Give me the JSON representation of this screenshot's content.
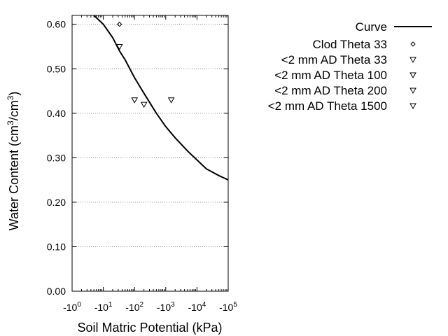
{
  "chart_data": {
    "type": "scatter",
    "xlabel": "Soil Matric Potential (kPa)",
    "ylabel_main": "Water Content (cm",
    "ylabel_sup1": "3",
    "ylabel_mid": "/cm",
    "ylabel_sup2": "3",
    "ylabel_end": ")",
    "x_scale": "log (negative potentials)",
    "xlim": [
      -1,
      -100000
    ],
    "ylim": [
      0.0,
      0.62
    ],
    "grid": "horizontal dotted",
    "legend_placement": "top-right outside plot",
    "x_ticks": [
      {
        "value": -1,
        "base": "-10",
        "exp": "0"
      },
      {
        "value": -10,
        "base": "-10",
        "exp": "1"
      },
      {
        "value": -100,
        "base": "-10",
        "exp": "2"
      },
      {
        "value": -1000,
        "base": "-10",
        "exp": "3"
      },
      {
        "value": -10000,
        "base": "-10",
        "exp": "4"
      },
      {
        "value": -100000,
        "base": "-10",
        "exp": "5"
      }
    ],
    "y_ticks": [
      {
        "value": 0.0,
        "label": "0.00"
      },
      {
        "value": 0.1,
        "label": "0.10"
      },
      {
        "value": 0.2,
        "label": "0.20"
      },
      {
        "value": 0.3,
        "label": "0.30"
      },
      {
        "value": 0.4,
        "label": "0.40"
      },
      {
        "value": 0.5,
        "label": "0.50"
      },
      {
        "value": 0.6,
        "label": "0.60"
      }
    ],
    "curve": {
      "name": "Curve",
      "x": [
        -5,
        -10,
        -20,
        -33,
        -50,
        -100,
        -200,
        -500,
        -1000,
        -2000,
        -5000,
        -10000,
        -20000,
        -50000,
        -100000
      ],
      "y": [
        0.62,
        0.6,
        0.57,
        0.54,
        0.52,
        0.48,
        0.445,
        0.4,
        0.37,
        0.345,
        0.315,
        0.295,
        0.275,
        0.26,
        0.25
      ]
    },
    "series": [
      {
        "name": "Clod Theta 33",
        "marker": "diamond",
        "points": [
          {
            "x": -33,
            "y": 0.6
          }
        ]
      },
      {
        "name": "<2 mm AD Theta 33",
        "marker": "triangle-down",
        "points": [
          {
            "x": -33,
            "y": 0.55
          }
        ]
      },
      {
        "name": "<2 mm AD Theta 100",
        "marker": "triangle-down",
        "points": [
          {
            "x": -100,
            "y": 0.43
          }
        ]
      },
      {
        "name": "<2 mm AD Theta 200",
        "marker": "triangle-down",
        "points": [
          {
            "x": -200,
            "y": 0.42
          }
        ]
      },
      {
        "name": "<2 mm AD Theta 1500",
        "marker": "triangle-down",
        "points": [
          {
            "x": -1500,
            "y": 0.43
          }
        ]
      }
    ]
  }
}
